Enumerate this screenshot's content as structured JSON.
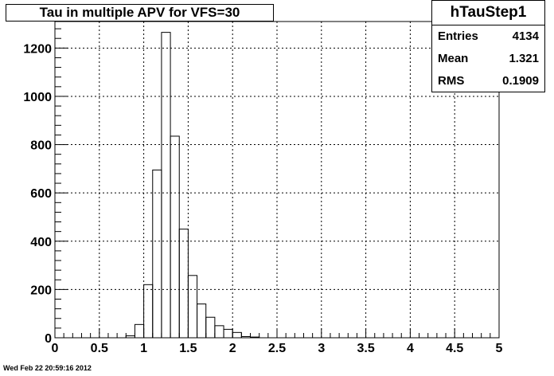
{
  "title": "Tau in multiple APV for VFS=30",
  "stats": {
    "name": "hTauStep1",
    "entries_label": "Entries",
    "entries_value": "4134",
    "mean_label": "Mean",
    "mean_value": "1.321",
    "rms_label": "RMS",
    "rms_value": "0.1909"
  },
  "timestamp": "Wed Feb 22 20:59:16 2012",
  "chart_data": {
    "type": "bar",
    "style": "step-histogram",
    "title": "Tau in multiple APV for VFS=30",
    "xlabel": "",
    "ylabel": "",
    "xlim": [
      0,
      5
    ],
    "ylim": [
      0,
      1310
    ],
    "grid": true,
    "bin_width": 0.1,
    "x_ticks": [
      "0",
      "0.5",
      "1",
      "1.5",
      "2",
      "2.5",
      "3",
      "3.5",
      "4",
      "4.5",
      "5"
    ],
    "y_ticks": [
      "0",
      "200",
      "400",
      "600",
      "800",
      "1000",
      "1200"
    ],
    "series": [
      {
        "bin_edges": [
          0.8,
          0.9,
          1.0,
          1.1,
          1.2,
          1.3,
          1.4,
          1.5,
          1.6,
          1.7,
          1.8,
          1.9,
          2.0,
          2.1,
          2.2,
          2.3
        ],
        "values": [
          8,
          55,
          220,
          695,
          1265,
          835,
          450,
          258,
          140,
          85,
          50,
          35,
          22,
          5,
          3
        ]
      }
    ],
    "colors": {
      "line": "#000000",
      "grid": "#000000",
      "frame": "#000000"
    }
  }
}
